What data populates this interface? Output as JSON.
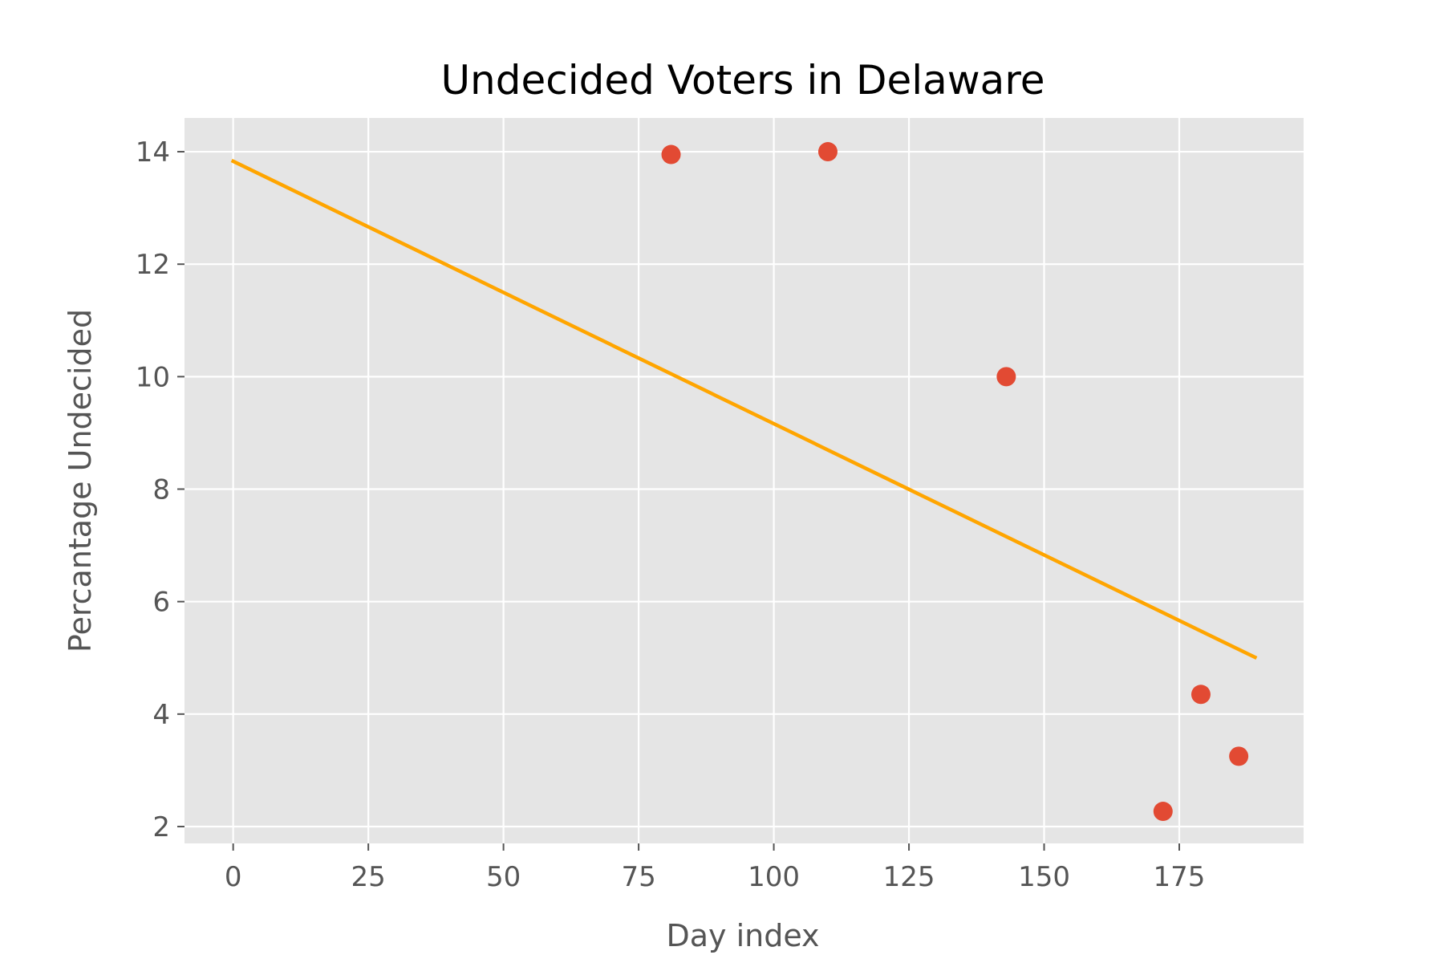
{
  "chart_data": {
    "type": "scatter",
    "title": "Undecided Voters in Delaware",
    "xlabel": "Day index",
    "ylabel": "Percantage Undecided",
    "xlim": [
      -9,
      198
    ],
    "ylim": [
      1.7,
      14.6
    ],
    "xticks": [
      0,
      25,
      50,
      75,
      100,
      125,
      150,
      175
    ],
    "yticks": [
      2,
      4,
      6,
      8,
      10,
      12,
      14
    ],
    "grid": true,
    "legend": "none",
    "series": [
      {
        "kind": "scatter",
        "color": "#E24A33",
        "points": [
          {
            "x": 81,
            "y": 13.95
          },
          {
            "x": 110,
            "y": 14.0
          },
          {
            "x": 143,
            "y": 10.0
          },
          {
            "x": 172,
            "y": 2.27
          },
          {
            "x": 179,
            "y": 4.35
          },
          {
            "x": 186,
            "y": 3.25
          }
        ]
      },
      {
        "kind": "line",
        "color": "#FFA500",
        "points": [
          {
            "x": 0,
            "y": 13.83
          },
          {
            "x": 189,
            "y": 5.01
          }
        ]
      }
    ],
    "colors": {
      "plot_background": "#E5E5E5",
      "grid": "#FFFFFF",
      "tick": "#555555"
    }
  }
}
